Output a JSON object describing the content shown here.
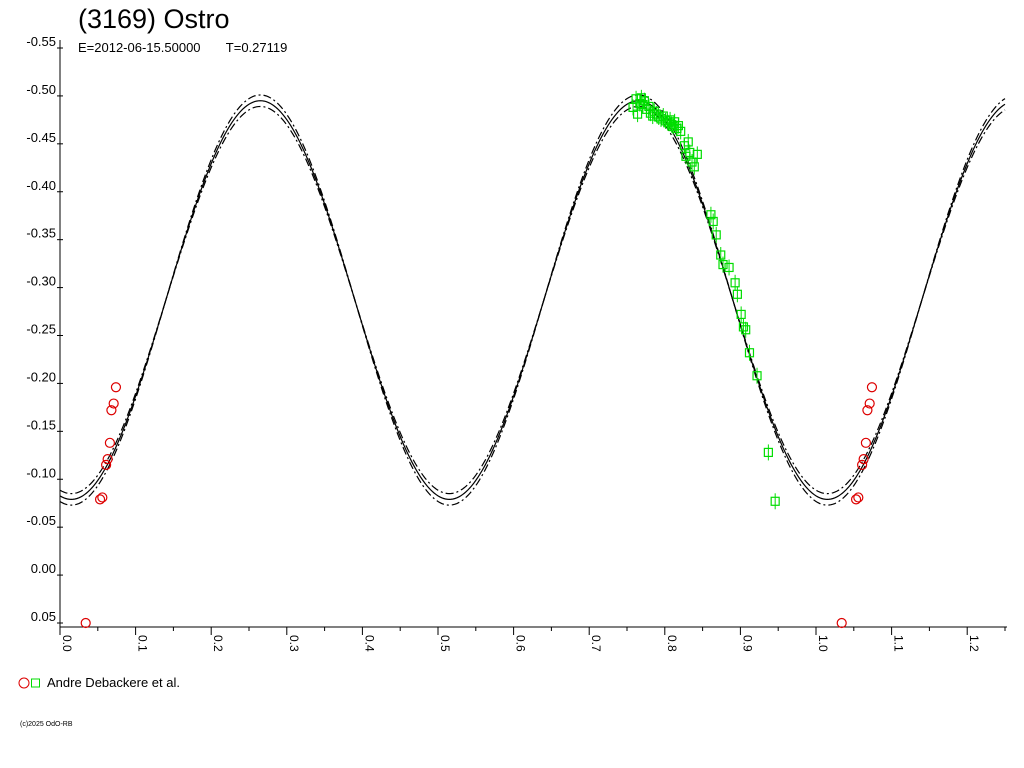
{
  "title": "(3169) Ostro",
  "subtitle": {
    "epoch": "E=2012-06-15.50000",
    "period": "T=0.27119"
  },
  "legend": {
    "label": "Andre Debackere et al."
  },
  "copyright": "(c)2025 OdO-RB",
  "colors": {
    "red": "#dd0000",
    "green": "#00dd00",
    "curve": "#000000"
  },
  "chart_data": {
    "type": "scatter",
    "xlim": [
      0,
      1.25
    ],
    "ylim": [
      -0.55,
      0.05
    ],
    "y_inverted": true,
    "x_ticks": [
      0.0,
      0.1,
      0.2,
      0.3,
      0.4,
      0.5,
      0.6,
      0.7,
      0.8,
      0.9,
      1.0,
      1.1,
      1.2
    ],
    "x_tick_labels": [
      "0.0",
      "0.1",
      "0.2",
      "0.3",
      "0.4",
      "0.5",
      "0.6",
      "0.7",
      "0.8",
      "0.9",
      "1.0",
      "1.1",
      "1.2"
    ],
    "y_ticks": [
      -0.55,
      -0.5,
      -0.45,
      -0.4,
      -0.35,
      -0.3,
      -0.25,
      -0.2,
      -0.15,
      -0.1,
      -0.05,
      0.0,
      0.05
    ],
    "y_tick_labels": [
      "-0.55",
      "-0.50",
      "-0.45",
      "-0.40",
      "-0.35",
      "-0.30",
      "-0.25",
      "-0.20",
      "-0.15",
      "-0.10",
      "-0.05",
      "0.00",
      "0.05"
    ],
    "model": {
      "mean": -0.287,
      "amplitude": 0.208,
      "phase_max": 0.265,
      "offsets": [
        -0.006,
        0.0,
        0.006
      ]
    },
    "series": [
      {
        "marker": "circle",
        "color": "#dd0000",
        "points": [
          [
            0.034,
            0.05
          ],
          [
            0.053,
            -0.079
          ],
          [
            0.056,
            -0.081
          ],
          [
            0.061,
            -0.115
          ],
          [
            0.063,
            -0.121
          ],
          [
            0.066,
            -0.138
          ],
          [
            0.068,
            -0.172
          ],
          [
            0.071,
            -0.179
          ],
          [
            0.074,
            -0.196
          ],
          [
            1.034,
            0.05
          ],
          [
            1.053,
            -0.079
          ],
          [
            1.056,
            -0.081
          ],
          [
            1.061,
            -0.115
          ],
          [
            1.063,
            -0.121
          ],
          [
            1.066,
            -0.138
          ],
          [
            1.068,
            -0.172
          ],
          [
            1.071,
            -0.179
          ],
          [
            1.074,
            -0.196
          ]
        ]
      },
      {
        "marker": "square",
        "color": "#00dd00",
        "points": [
          [
            0.758,
            -0.488
          ],
          [
            0.762,
            -0.497
          ],
          [
            0.764,
            -0.481
          ],
          [
            0.767,
            -0.492
          ],
          [
            0.769,
            -0.498
          ],
          [
            0.771,
            -0.491
          ],
          [
            0.773,
            -0.495
          ],
          [
            0.776,
            -0.486
          ],
          [
            0.779,
            -0.489
          ],
          [
            0.781,
            -0.482
          ],
          [
            0.784,
            -0.479
          ],
          [
            0.786,
            -0.484
          ],
          [
            0.789,
            -0.481
          ],
          [
            0.792,
            -0.478
          ],
          [
            0.795,
            -0.476
          ],
          [
            0.798,
            -0.479
          ],
          [
            0.801,
            -0.474
          ],
          [
            0.804,
            -0.472
          ],
          [
            0.807,
            -0.475
          ],
          [
            0.809,
            -0.47
          ],
          [
            0.811,
            -0.468
          ],
          [
            0.813,
            -0.473
          ],
          [
            0.816,
            -0.466
          ],
          [
            0.818,
            -0.469
          ],
          [
            0.821,
            -0.463
          ],
          [
            0.826,
            -0.448
          ],
          [
            0.828,
            -0.437
          ],
          [
            0.831,
            -0.452
          ],
          [
            0.833,
            -0.441
          ],
          [
            0.836,
            -0.431
          ],
          [
            0.839,
            -0.426
          ],
          [
            0.843,
            -0.439
          ],
          [
            0.861,
            -0.376
          ],
          [
            0.864,
            -0.369
          ],
          [
            0.868,
            -0.355
          ],
          [
            0.874,
            -0.334
          ],
          [
            0.877,
            -0.324
          ],
          [
            0.885,
            -0.321
          ],
          [
            0.893,
            -0.305
          ],
          [
            0.896,
            -0.293
          ],
          [
            0.901,
            -0.272
          ],
          [
            0.904,
            -0.259
          ],
          [
            0.907,
            -0.256
          ],
          [
            0.912,
            -0.232
          ],
          [
            0.922,
            -0.208
          ],
          [
            0.937,
            -0.128
          ],
          [
            0.946,
            -0.077
          ]
        ]
      }
    ]
  }
}
